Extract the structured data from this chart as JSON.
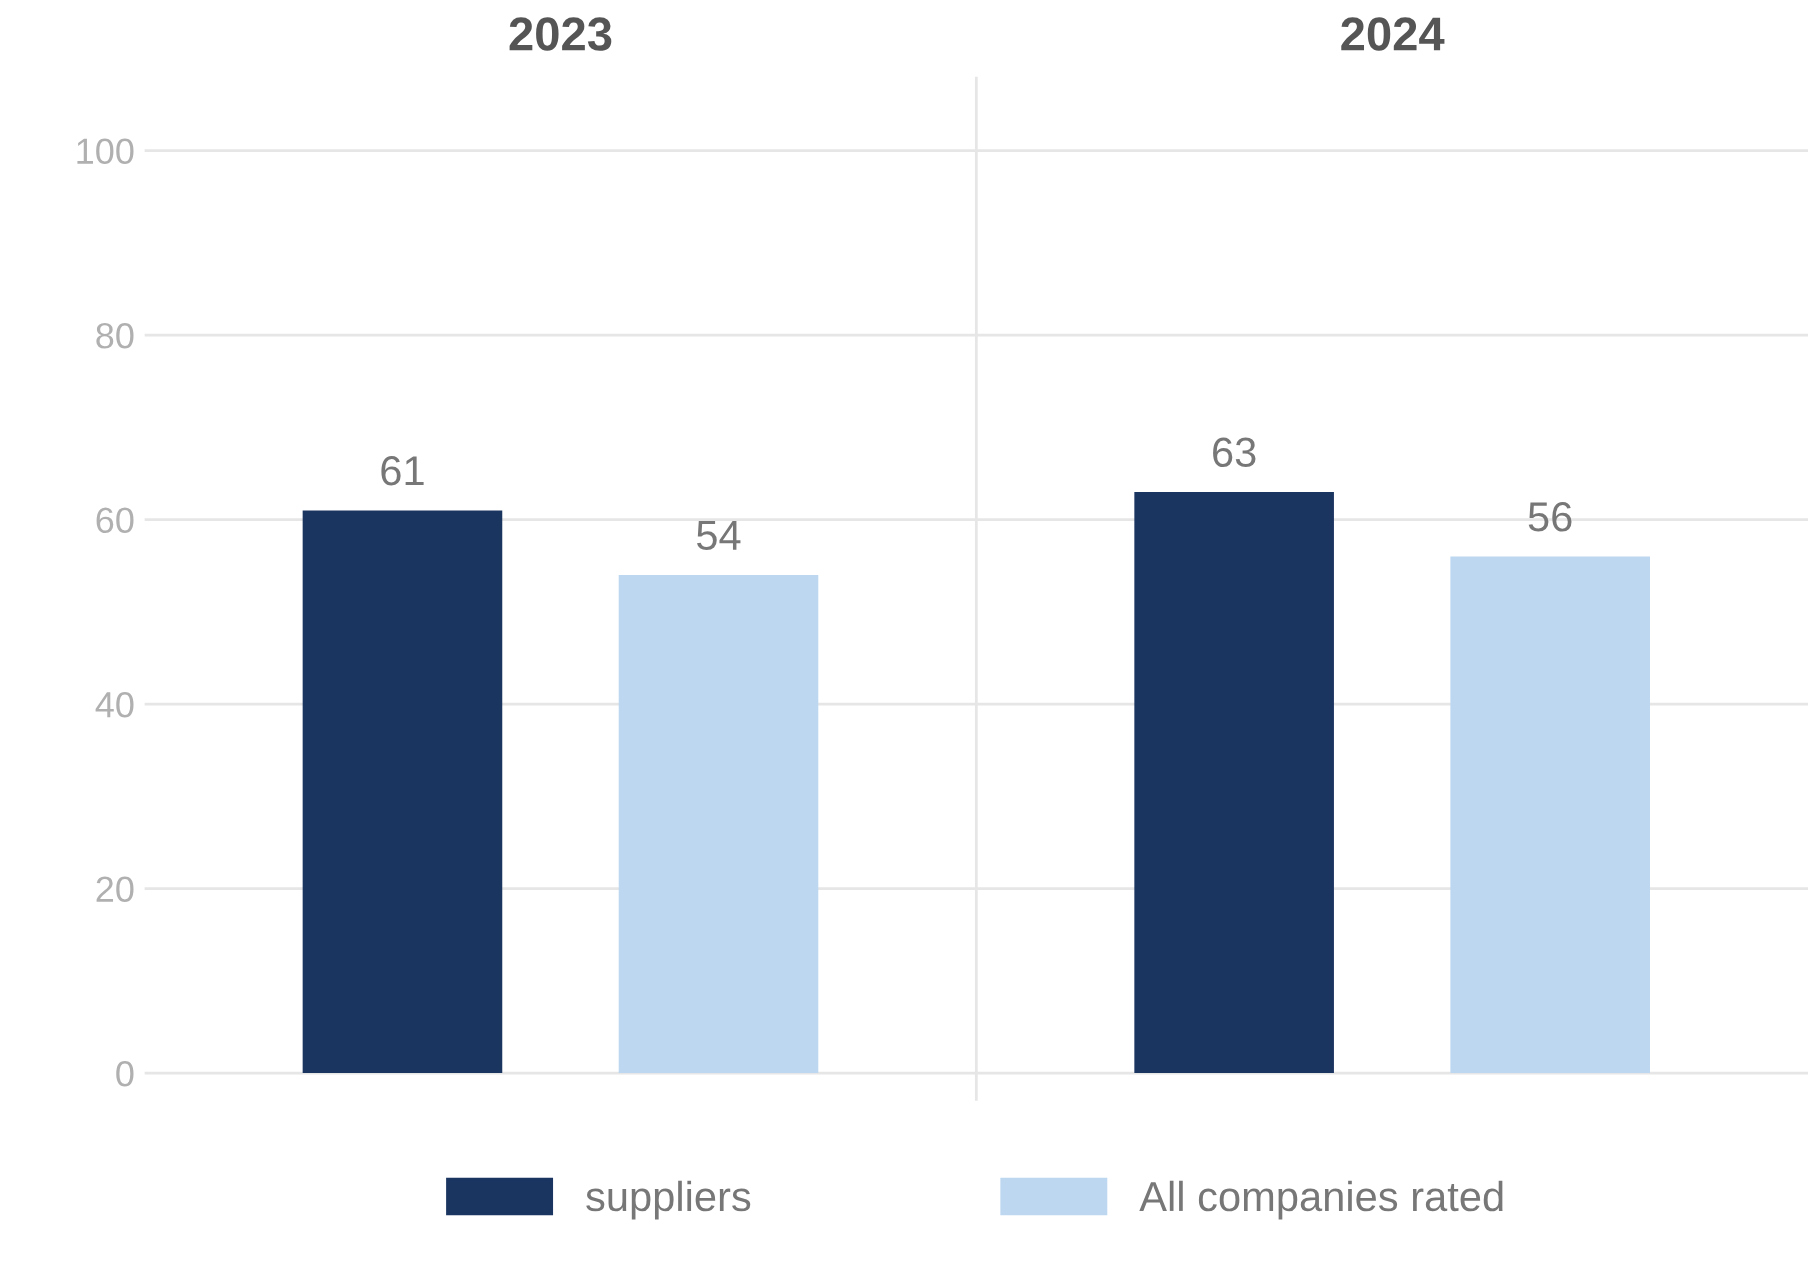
{
  "chart_data": {
    "type": "bar",
    "categories": [
      "2023",
      "2024"
    ],
    "series": [
      {
        "name": "suppliers",
        "color": "#1b3561",
        "values": [
          61,
          63
        ]
      },
      {
        "name": "All companies rated",
        "color": "#bdd7f0",
        "values": [
          54,
          56
        ]
      }
    ],
    "ylim": [
      -3,
      108
    ],
    "yticks": [
      0,
      20,
      40,
      60,
      80,
      100
    ],
    "grid": "y",
    "legend": "bottom",
    "data_labels": true
  }
}
